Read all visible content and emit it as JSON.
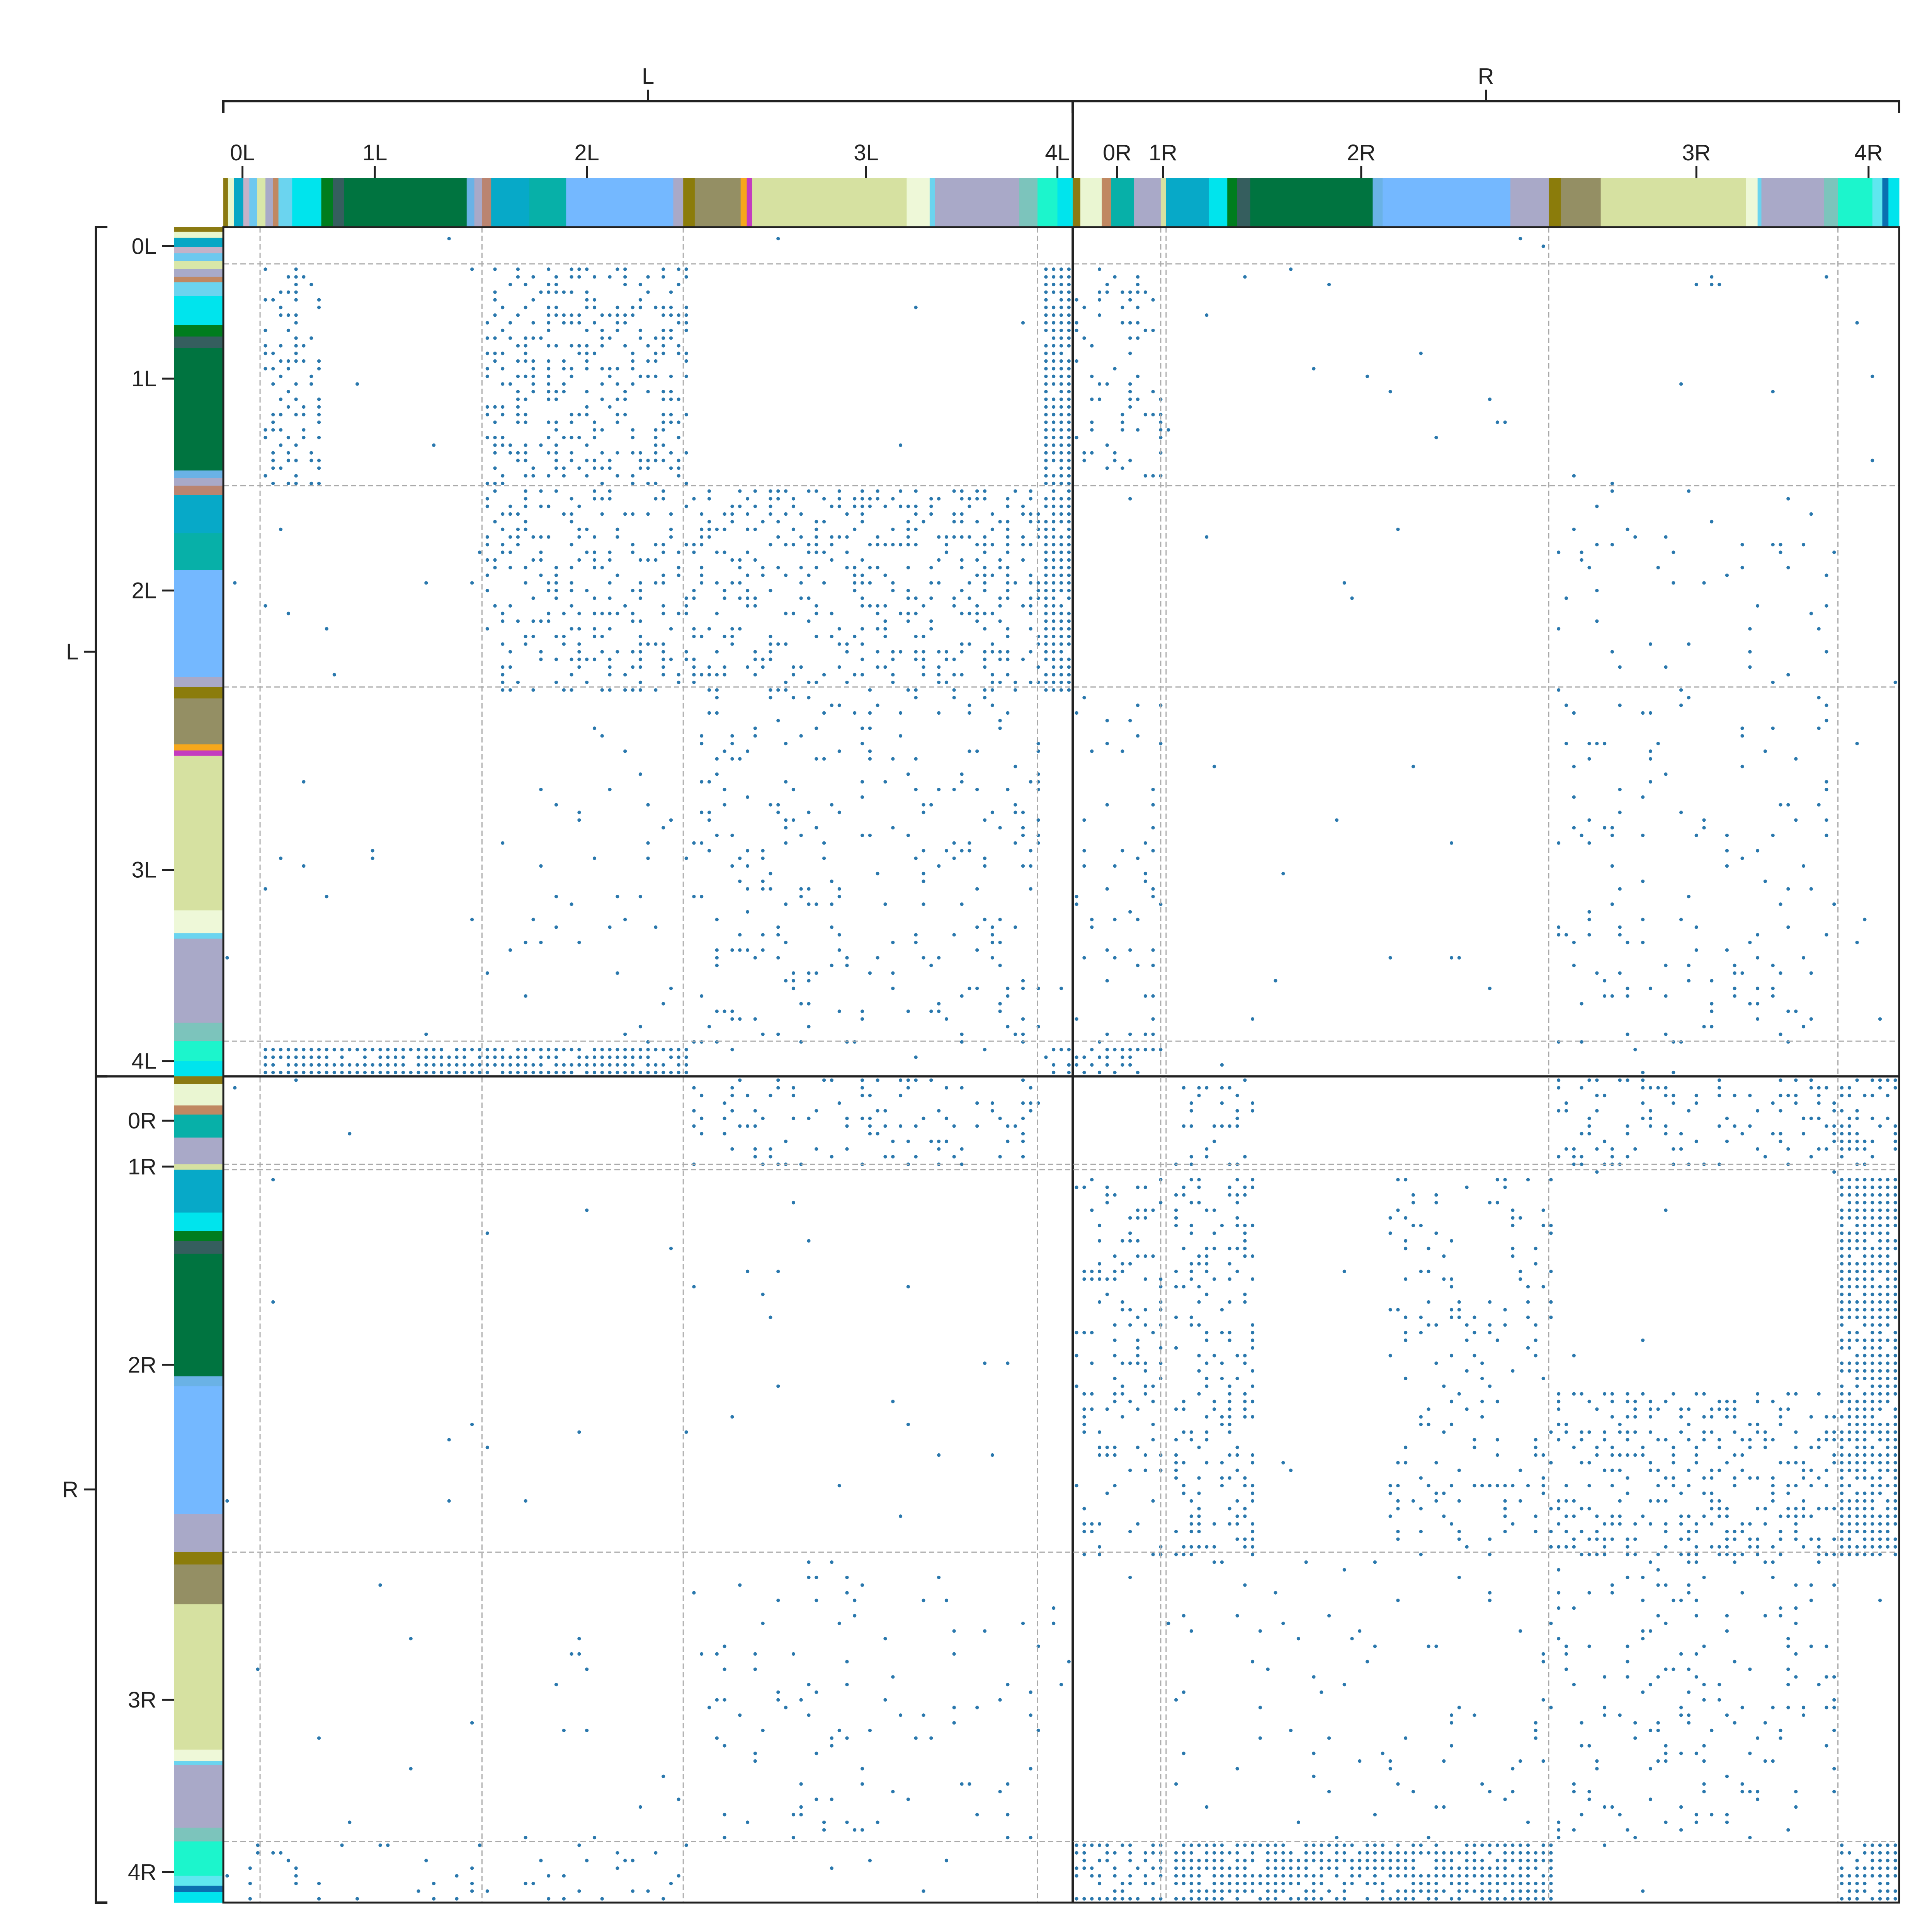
{
  "chart_data": {
    "type": "heatmap",
    "title": "",
    "xlabel": "",
    "ylabel": "",
    "grid": false,
    "marker_color": "#2a78ad",
    "separator_color": "#aaaaaa",
    "hemispheres": [
      {
        "label": "L",
        "start": 0,
        "end": 1110
      },
      {
        "label": "R",
        "start": 1110,
        "end": 2190
      }
    ],
    "layers": [
      {
        "label": "0L",
        "start": 0,
        "end": 48,
        "tick": 25
      },
      {
        "label": "1L",
        "start": 48,
        "end": 338,
        "tick": 198
      },
      {
        "label": "2L",
        "start": 338,
        "end": 601,
        "tick": 475
      },
      {
        "label": "3L",
        "start": 601,
        "end": 1064,
        "tick": 840
      },
      {
        "label": "4L",
        "start": 1064,
        "end": 1110,
        "tick": 1090
      },
      {
        "label": "0R",
        "start": 1110,
        "end": 1225,
        "tick": 1168
      },
      {
        "label": "1R",
        "start": 1225,
        "end": 1232,
        "tick": 1228
      },
      {
        "label": "2R",
        "start": 1232,
        "end": 1732,
        "tick": 1487
      },
      {
        "label": "3R",
        "start": 1732,
        "end": 2110,
        "tick": 1925
      },
      {
        "label": "4R",
        "start": 2110,
        "end": 2190,
        "tick": 2150
      }
    ],
    "cell_types": [
      {
        "start": 0,
        "end": 6,
        "color": "#8b7a12"
      },
      {
        "start": 6,
        "end": 14,
        "color": "#e8f7cf"
      },
      {
        "start": 14,
        "end": 26,
        "color": "#06a7c5"
      },
      {
        "start": 26,
        "end": 34,
        "color": "#c4b2c8"
      },
      {
        "start": 34,
        "end": 44,
        "color": "#6dc8ef"
      },
      {
        "start": 44,
        "end": 55,
        "color": "#d9e7a8"
      },
      {
        "start": 55,
        "end": 65,
        "color": "#a8aac8"
      },
      {
        "start": 65,
        "end": 72,
        "color": "#c08862"
      },
      {
        "start": 72,
        "end": 90,
        "color": "#6bd4ef"
      },
      {
        "start": 90,
        "end": 128,
        "color": "#00e4ed"
      },
      {
        "start": 128,
        "end": 143,
        "color": "#007d1e"
      },
      {
        "start": 143,
        "end": 158,
        "color": "#355e5e"
      },
      {
        "start": 158,
        "end": 318,
        "color": "#007440"
      },
      {
        "start": 318,
        "end": 328,
        "color": "#6ab2e6"
      },
      {
        "start": 328,
        "end": 338,
        "color": "#a9a9c8"
      },
      {
        "start": 338,
        "end": 350,
        "color": "#ba8470"
      },
      {
        "start": 350,
        "end": 400,
        "color": "#07a9c8"
      },
      {
        "start": 400,
        "end": 448,
        "color": "#07b0a8"
      },
      {
        "start": 448,
        "end": 588,
        "color": "#74b8ff"
      },
      {
        "start": 588,
        "end": 601,
        "color": "#a9a9c8"
      },
      {
        "start": 601,
        "end": 616,
        "color": "#8b7c0b"
      },
      {
        "start": 616,
        "end": 676,
        "color": "#948f64"
      },
      {
        "start": 676,
        "end": 684,
        "color": "#f6a81c"
      },
      {
        "start": 684,
        "end": 691,
        "color": "#c43bbf"
      },
      {
        "start": 691,
        "end": 893,
        "color": "#d6e1a1"
      },
      {
        "start": 893,
        "end": 923,
        "color": "#eef8d8"
      },
      {
        "start": 923,
        "end": 930,
        "color": "#6bd4ef"
      },
      {
        "start": 930,
        "end": 1040,
        "color": "#a9a9c8"
      },
      {
        "start": 1040,
        "end": 1064,
        "color": "#7cc4bc"
      },
      {
        "start": 1064,
        "end": 1090,
        "color": "#1cf5cc"
      },
      {
        "start": 1090,
        "end": 1110,
        "color": "#00e4ed"
      },
      {
        "start": 1110,
        "end": 1120,
        "color": "#8b7a12"
      },
      {
        "start": 1120,
        "end": 1148,
        "color": "#eaf6d2"
      },
      {
        "start": 1148,
        "end": 1160,
        "color": "#c08862"
      },
      {
        "start": 1160,
        "end": 1190,
        "color": "#07b0a8"
      },
      {
        "start": 1190,
        "end": 1225,
        "color": "#a9a9c8"
      },
      {
        "start": 1225,
        "end": 1232,
        "color": "#d6e1a1"
      },
      {
        "start": 1232,
        "end": 1288,
        "color": "#07a9c8"
      },
      {
        "start": 1288,
        "end": 1312,
        "color": "#00e4ed"
      },
      {
        "start": 1312,
        "end": 1325,
        "color": "#007d1e"
      },
      {
        "start": 1325,
        "end": 1342,
        "color": "#355e5e"
      },
      {
        "start": 1342,
        "end": 1502,
        "color": "#007440"
      },
      {
        "start": 1502,
        "end": 1515,
        "color": "#6ab2e6"
      },
      {
        "start": 1515,
        "end": 1682,
        "color": "#74b8ff"
      },
      {
        "start": 1682,
        "end": 1732,
        "color": "#a9a9c8"
      },
      {
        "start": 1732,
        "end": 1748,
        "color": "#8b7c0b"
      },
      {
        "start": 1748,
        "end": 1800,
        "color": "#948f64"
      },
      {
        "start": 1800,
        "end": 1990,
        "color": "#d6e1a1"
      },
      {
        "start": 1990,
        "end": 2005,
        "color": "#eef8d8"
      },
      {
        "start": 2005,
        "end": 2010,
        "color": "#6bd4ef"
      },
      {
        "start": 2010,
        "end": 2092,
        "color": "#a9a9c8"
      },
      {
        "start": 2092,
        "end": 2110,
        "color": "#7cc4bc"
      },
      {
        "start": 2110,
        "end": 2155,
        "color": "#1cf5cc"
      },
      {
        "start": 2155,
        "end": 2168,
        "color": "#5fe7ef"
      },
      {
        "start": 2168,
        "end": 2176,
        "color": "#0a6fb0"
      },
      {
        "start": 2176,
        "end": 2190,
        "color": "#00e4ed"
      }
    ],
    "blocks": [
      {
        "rows": [
          48,
          338
        ],
        "cols": [
          338,
          601
        ],
        "density": 0.38
      },
      {
        "rows": [
          48,
          338
        ],
        "cols": [
          48,
          128
        ],
        "density": 0.42
      },
      {
        "rows": [
          48,
          338
        ],
        "cols": [
          1064,
          1110
        ],
        "density": 0.95
      },
      {
        "rows": [
          48,
          338
        ],
        "cols": [
          1110,
          1225
        ],
        "density": 0.18
      },
      {
        "rows": [
          338,
          601
        ],
        "cols": [
          338,
          601
        ],
        "density": 0.3
      },
      {
        "rows": [
          338,
          601
        ],
        "cols": [
          601,
          1064
        ],
        "density": 0.32
      },
      {
        "rows": [
          338,
          601
        ],
        "cols": [
          1064,
          1110
        ],
        "density": 0.92
      },
      {
        "rows": [
          338,
          601
        ],
        "cols": [
          1732,
          2110
        ],
        "density": 0.05
      },
      {
        "rows": [
          601,
          1064
        ],
        "cols": [
          601,
          1064
        ],
        "density": 0.12
      },
      {
        "rows": [
          601,
          1064
        ],
        "cols": [
          1732,
          2110
        ],
        "density": 0.09
      },
      {
        "rows": [
          601,
          1064
        ],
        "cols": [
          338,
          601
        ],
        "density": 0.03
      },
      {
        "rows": [
          601,
          1064
        ],
        "cols": [
          1110,
          1225
        ],
        "density": 0.08
      },
      {
        "rows": [
          1064,
          1110
        ],
        "cols": [
          48,
          601
        ],
        "density": 0.9
      },
      {
        "rows": [
          1064,
          1110
        ],
        "cols": [
          1064,
          1225
        ],
        "density": 0.45
      },
      {
        "rows": [
          1110,
          1225
        ],
        "cols": [
          601,
          1064
        ],
        "density": 0.2
      },
      {
        "rows": [
          1110,
          1225
        ],
        "cols": [
          1732,
          2110
        ],
        "density": 0.25
      },
      {
        "rows": [
          1110,
          1225
        ],
        "cols": [
          1232,
          1342
        ],
        "density": 0.2
      },
      {
        "rows": [
          1110,
          1225
        ],
        "cols": [
          2110,
          2190
        ],
        "density": 0.4
      },
      {
        "rows": [
          1232,
          1732
        ],
        "cols": [
          1232,
          1342
        ],
        "density": 0.3
      },
      {
        "rows": [
          1232,
          1732
        ],
        "cols": [
          1515,
          1732
        ],
        "density": 0.15
      },
      {
        "rows": [
          1232,
          1732
        ],
        "cols": [
          2110,
          2190
        ],
        "density": 0.88
      },
      {
        "rows": [
          1232,
          1732
        ],
        "cols": [
          1110,
          1225
        ],
        "density": 0.25
      },
      {
        "rows": [
          1515,
          1732
        ],
        "cols": [
          1732,
          2110
        ],
        "density": 0.35
      },
      {
        "rows": [
          1732,
          2110
        ],
        "cols": [
          1732,
          2110
        ],
        "density": 0.13
      },
      {
        "rows": [
          1732,
          2110
        ],
        "cols": [
          601,
          1064
        ],
        "density": 0.06
      },
      {
        "rows": [
          1732,
          2110
        ],
        "cols": [
          1232,
          1732
        ],
        "density": 0.04
      },
      {
        "rows": [
          2110,
          2190
        ],
        "cols": [
          1232,
          1732
        ],
        "density": 0.8
      },
      {
        "rows": [
          2110,
          2190
        ],
        "cols": [
          1110,
          1225
        ],
        "density": 0.6
      },
      {
        "rows": [
          2110,
          2190
        ],
        "cols": [
          2110,
          2190
        ],
        "density": 0.9
      },
      {
        "rows": [
          2110,
          2190
        ],
        "cols": [
          0,
          601
        ],
        "density": 0.1
      }
    ],
    "background_density": 0.006
  }
}
